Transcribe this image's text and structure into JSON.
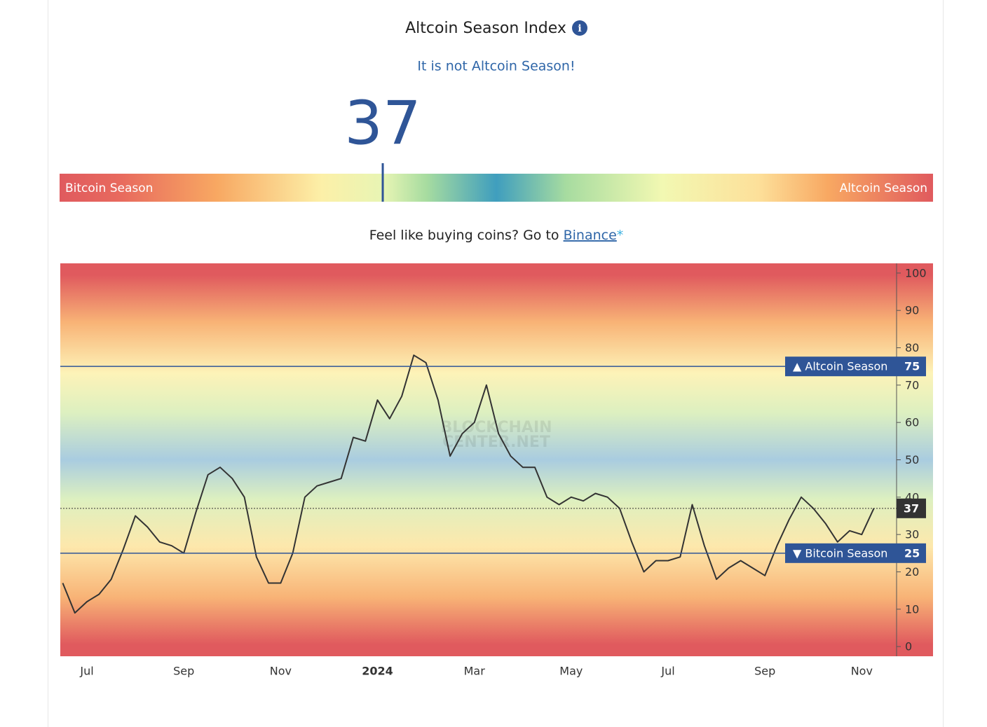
{
  "header": {
    "title": "Altcoin Season Index",
    "subtitle": "It is not Altcoin Season!"
  },
  "index": {
    "value": 37,
    "left_label": "Bitcoin Season",
    "right_label": "Altcoin Season",
    "min": 0,
    "max": 100
  },
  "promo": {
    "text": "Feel like buying coins? Go to",
    "link": "Binance",
    "mark": "*"
  },
  "chart_data": {
    "type": "line",
    "watermark": [
      "BLOCKCHAIN",
      "CENTER.NET"
    ],
    "categories": [
      null,
      null,
      "Jul",
      null,
      null,
      null,
      null,
      null,
      null,
      null,
      "Sep",
      null,
      null,
      null,
      null,
      null,
      null,
      null,
      "Nov",
      null,
      null,
      null,
      null,
      null,
      null,
      null,
      "2024",
      null,
      null,
      null,
      null,
      null,
      null,
      null,
      "Mar",
      null,
      null,
      null,
      null,
      null,
      null,
      null,
      "May",
      null,
      null,
      null,
      null,
      null,
      null,
      null,
      "Jul",
      null,
      null,
      null,
      null,
      null,
      null,
      null,
      "Sep",
      null,
      null,
      null,
      null,
      null,
      null,
      null,
      "Nov",
      null
    ],
    "series": [
      {
        "name": "Altcoin Season Index",
        "color": "#333333",
        "values": [
          17,
          9,
          12,
          14,
          18,
          26,
          35,
          32,
          28,
          27,
          25,
          36,
          46,
          48,
          45,
          40,
          24,
          17,
          17,
          25,
          40,
          43,
          44,
          45,
          56,
          55,
          66,
          61,
          67,
          78,
          76,
          66,
          51,
          57,
          60,
          70,
          57,
          51,
          48,
          48,
          40,
          38,
          40,
          39,
          41,
          40,
          37,
          28,
          20,
          23,
          23,
          24,
          38,
          27,
          18,
          21,
          23,
          21,
          19,
          27,
          34,
          40,
          37,
          33,
          28,
          31,
          30,
          37
        ]
      }
    ],
    "ylim": [
      -2.6,
      102.6
    ],
    "yticks": [
      0,
      10,
      20,
      30,
      40,
      50,
      60,
      70,
      80,
      90,
      100
    ],
    "reference_lines": [
      {
        "value": 75,
        "label": "▲ Altcoin Season"
      },
      {
        "value": 25,
        "label": "▼ Bitcoin Season"
      }
    ]
  }
}
